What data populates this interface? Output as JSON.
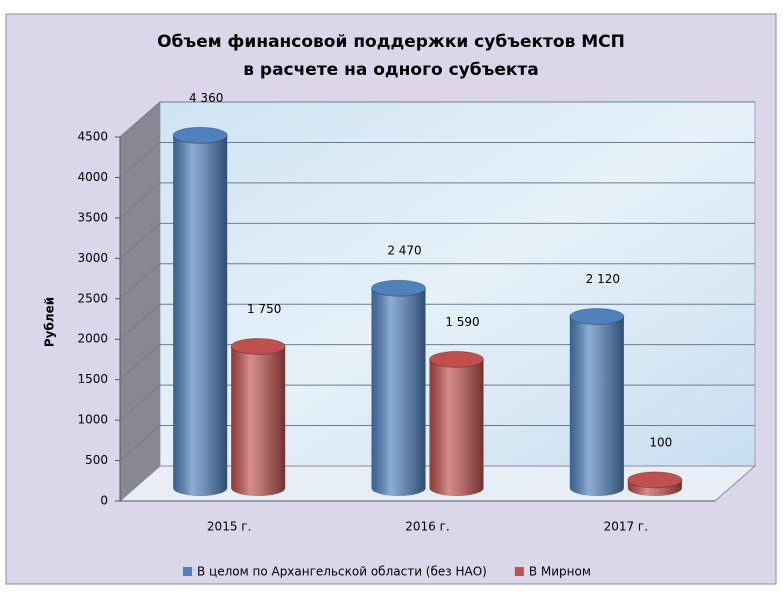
{
  "chart_data": {
    "type": "bar3d",
    "title": [
      "Объем финансовой поддержки субъектов МСП",
      "в расчете на одного субъекта"
    ],
    "y_axis_label": "Рублей",
    "categories": [
      "2015 г.",
      "2016 г.",
      "2017 г."
    ],
    "series": [
      {
        "name": "В целом по Архангельской области (без НАО)",
        "color": "#4f81bd",
        "values": [
          4360,
          2470,
          2120
        ],
        "value_labels": [
          "4 360",
          "2 470",
          "2 120"
        ]
      },
      {
        "name": "В Мирном",
        "color": "#c0504d",
        "values": [
          1750,
          1590,
          100
        ],
        "value_labels": [
          "1 750",
          "1 590",
          "100"
        ]
      }
    ],
    "ylim": [
      0,
      4500
    ],
    "yticks": [
      0,
      500,
      1000,
      1500,
      2000,
      2500,
      3000,
      3500,
      4000,
      4500
    ],
    "grid": true,
    "legend": "bottom"
  }
}
